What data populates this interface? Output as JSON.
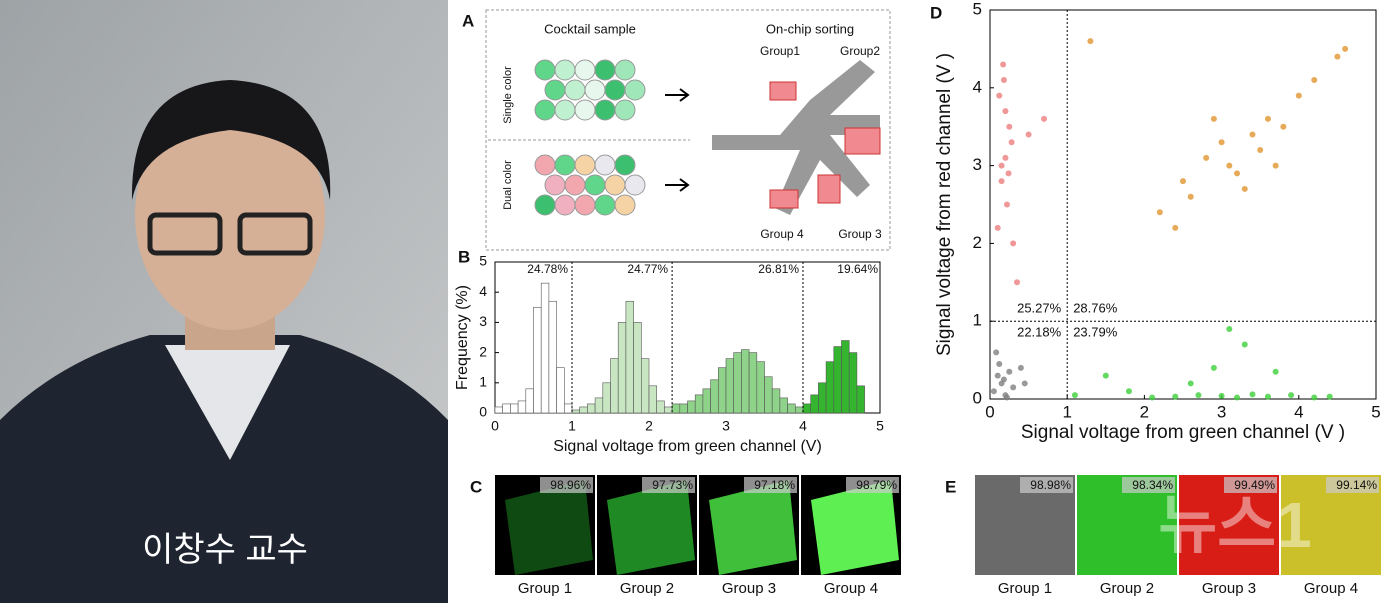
{
  "photo": {
    "caption": "이창수 교수"
  },
  "panels": {
    "a": {
      "letter": "A",
      "left_title": "Cocktail sample",
      "right_title": "On-chip sorting",
      "row1": "Single color",
      "row2": "Dual color",
      "groups": [
        "Group1",
        "Group2",
        "Group 4",
        "Group 3"
      ]
    },
    "b": {
      "letter": "B"
    },
    "c": {
      "letter": "C",
      "tiles": [
        {
          "percent": "98.96%",
          "label": "Group 1",
          "color": "#0f4a12"
        },
        {
          "percent": "97.73%",
          "label": "Group 2",
          "color": "#1f8a24"
        },
        {
          "percent": "97.18%",
          "label": "Group 3",
          "color": "#3fbf3a"
        },
        {
          "percent": "98.79%",
          "label": "Group 4",
          "color": "#5ef052"
        }
      ]
    },
    "d": {
      "letter": "D"
    },
    "e": {
      "letter": "E",
      "tiles": [
        {
          "percent": "98.98%",
          "label": "Group 1",
          "color": "#6a6a6a"
        },
        {
          "percent": "98.34%",
          "label": "Group 2",
          "color": "#2fbf2a"
        },
        {
          "percent": "99.49%",
          "label": "Group 3",
          "color": "#d81d16"
        },
        {
          "percent": "99.14%",
          "label": "Group 4",
          "color": "#cbbf2a"
        }
      ]
    },
    "watermark": "뉴스1"
  },
  "chart_data": [
    {
      "type": "histogram",
      "xlabel": "Signal voltage from green channel (V)",
      "ylabel": "Frequency (%)",
      "xlim": [
        0,
        5
      ],
      "xticks": [
        0,
        1,
        2,
        3,
        4,
        5
      ],
      "ylim": [
        0,
        5
      ],
      "yticks": [
        0,
        1,
        2,
        3,
        4,
        5
      ],
      "dividers": [
        1,
        2.3,
        4
      ],
      "annotations": [
        "24.78%",
        "24.77%",
        "26.81%",
        "19.64%"
      ],
      "groups": [
        {
          "color": "#ffffff",
          "bins": [
            0,
            0.1,
            0.2,
            0.3,
            0.4,
            0.5,
            0.6,
            0.7,
            0.8,
            0.9,
            1.0
          ],
          "values": [
            0.2,
            0.3,
            0.3,
            0.4,
            0.8,
            3.5,
            4.3,
            3.7,
            1.5,
            0.3
          ]
        },
        {
          "color": "#c9e6c3",
          "bins": [
            1.0,
            1.1,
            1.2,
            1.3,
            1.4,
            1.5,
            1.6,
            1.7,
            1.8,
            1.9,
            2.0,
            2.1,
            2.2,
            2.3
          ],
          "values": [
            0.1,
            0.2,
            0.3,
            0.5,
            1.0,
            1.8,
            3.0,
            3.7,
            3.0,
            1.8,
            0.9,
            0.4,
            0.2
          ]
        },
        {
          "color": "#8fd38a",
          "bins": [
            2.3,
            2.4,
            2.5,
            2.6,
            2.7,
            2.8,
            2.9,
            3.0,
            3.1,
            3.2,
            3.3,
            3.4,
            3.5,
            3.6,
            3.7,
            3.8,
            3.9,
            4.0
          ],
          "values": [
            0.3,
            0.3,
            0.4,
            0.6,
            0.8,
            1.1,
            1.5,
            1.8,
            2.0,
            2.1,
            2.0,
            1.7,
            1.2,
            0.8,
            0.5,
            0.3,
            0.2
          ]
        },
        {
          "color": "#35b52f",
          "bins": [
            4.0,
            4.1,
            4.2,
            4.3,
            4.4,
            4.5,
            4.6,
            4.7,
            4.8
          ],
          "values": [
            0.3,
            0.6,
            1.0,
            1.7,
            2.2,
            2.4,
            2.0,
            0.9
          ]
        }
      ]
    },
    {
      "type": "scatter",
      "xlabel": "Signal voltage from green channel (V )",
      "ylabel": "Signal voltage from red channel (V )",
      "xlim": [
        0,
        5
      ],
      "xticks": [
        0,
        1,
        2,
        3,
        4,
        5
      ],
      "ylim": [
        0,
        5
      ],
      "yticks": [
        0,
        1,
        2,
        3,
        4,
        5
      ],
      "dividers": {
        "x": 1,
        "y": 1
      },
      "quadrant_labels": {
        "top_left": "25.27%",
        "top_right": "28.76%",
        "bottom_left": "22.18%",
        "bottom_right": "23.79%"
      },
      "series": [
        {
          "color": "#808080",
          "x": [
            0.05,
            0.1,
            0.15,
            0.2,
            0.25,
            0.3,
            0.12,
            0.18,
            0.4,
            0.45,
            0.08,
            0.22
          ],
          "values": [
            0.1,
            0.3,
            0.2,
            0.05,
            0.35,
            0.15,
            0.45,
            0.25,
            0.4,
            0.2,
            0.6,
            0.02
          ]
        },
        {
          "color": "#ec7d7d",
          "x": [
            0.1,
            0.15,
            0.2,
            0.25,
            0.12,
            0.18,
            0.22,
            0.28,
            0.15,
            0.2,
            0.3,
            0.5,
            0.7,
            0.35,
            0.17,
            0.24
          ],
          "values": [
            2.2,
            2.8,
            3.1,
            3.5,
            3.9,
            4.1,
            2.5,
            3.3,
            3.0,
            3.7,
            2.0,
            3.4,
            3.6,
            1.5,
            4.3,
            2.9
          ]
        },
        {
          "color": "#e0952e",
          "x": [
            2.5,
            2.8,
            3.0,
            3.2,
            3.4,
            3.6,
            3.8,
            4.0,
            2.2,
            2.6,
            3.1,
            3.5,
            4.2,
            4.5,
            3.3,
            2.9,
            3.7,
            2.4,
            4.6,
            1.3
          ],
          "values": [
            2.8,
            3.1,
            3.3,
            2.9,
            3.4,
            3.6,
            3.5,
            3.9,
            2.4,
            2.6,
            3.0,
            3.2,
            4.1,
            4.4,
            2.7,
            3.6,
            3.0,
            2.2,
            4.5,
            4.6
          ]
        },
        {
          "color": "#3ccf3a",
          "x": [
            1.1,
            1.5,
            2.1,
            2.4,
            2.7,
            3.0,
            3.2,
            3.4,
            3.6,
            3.9,
            4.2,
            4.4,
            2.9,
            3.3,
            2.6,
            3.1,
            1.8,
            3.7
          ],
          "values": [
            0.05,
            0.3,
            0.02,
            0.03,
            0.05,
            0.04,
            0.02,
            0.06,
            0.03,
            0.05,
            0.02,
            0.03,
            0.4,
            0.7,
            0.2,
            0.9,
            0.1,
            0.35
          ]
        }
      ]
    }
  ]
}
